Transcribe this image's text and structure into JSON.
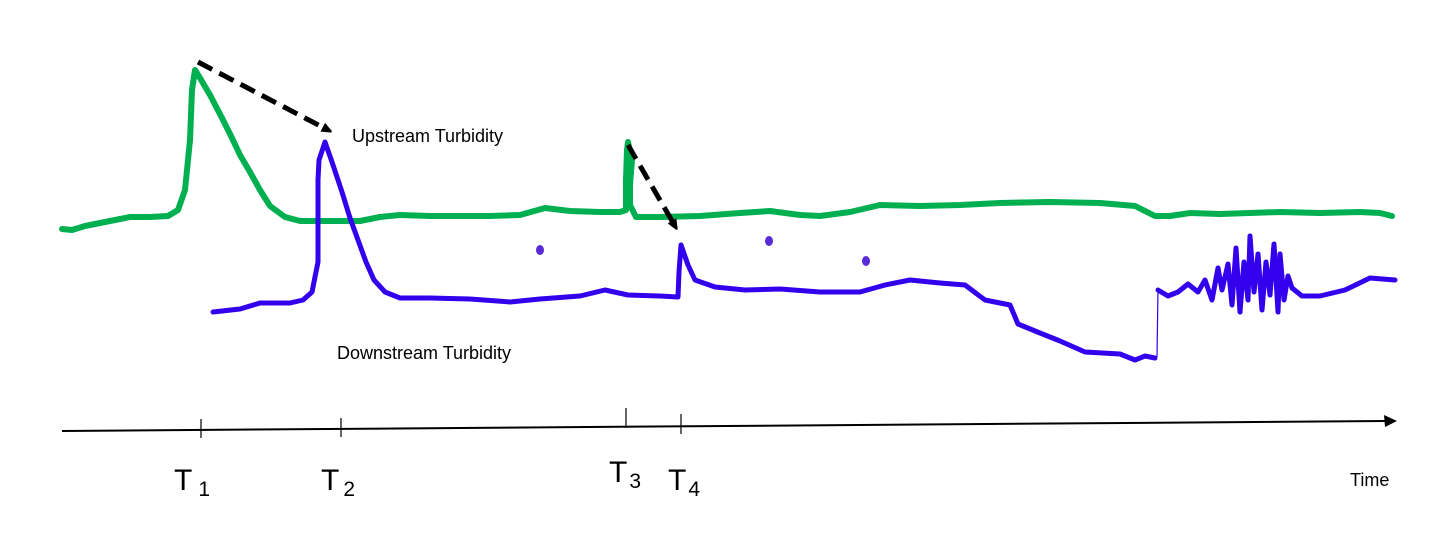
{
  "colors": {
    "upstream": "#00b050",
    "downstream": "#3300ee",
    "arrow": "#000000",
    "axis": "#000000",
    "dot": "#5b2bd6"
  },
  "labels": {
    "upstream": "Upstream Turbidity",
    "downstream": "Downstream Turbidity",
    "time_axis": "Time"
  },
  "ticks": [
    {
      "letter": "T",
      "sub": "1"
    },
    {
      "letter": "T",
      "sub": "2"
    },
    {
      "letter": "T",
      "sub": "3"
    },
    {
      "letter": "T",
      "sub": "4"
    }
  ]
}
